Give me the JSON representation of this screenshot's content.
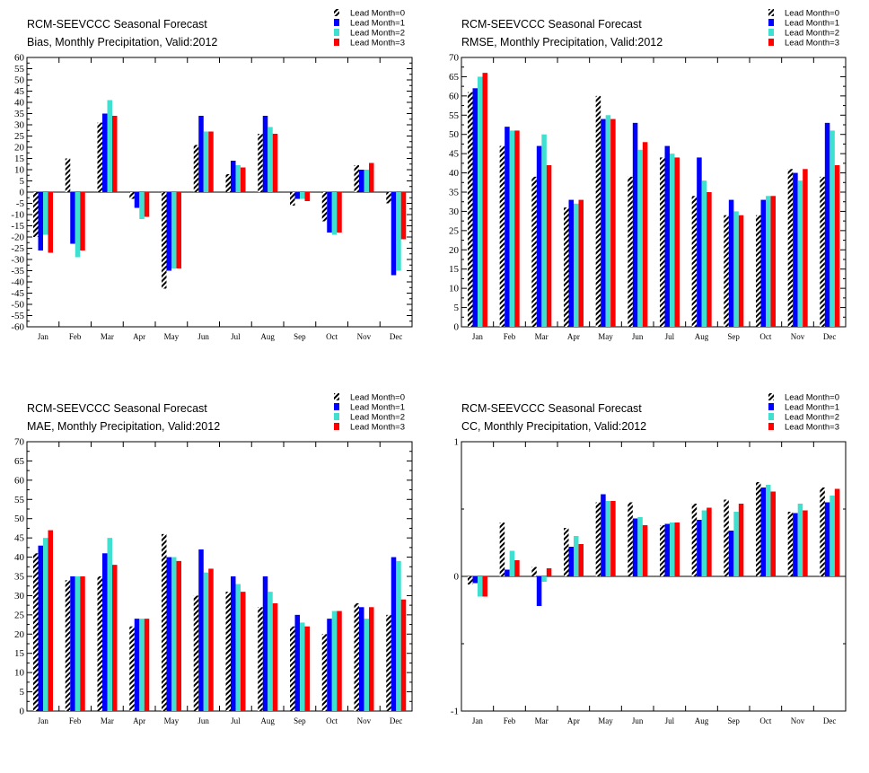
{
  "chart_data": [
    {
      "type": "bar",
      "title": "RCM-SEEVCCC Seasonal Forecast",
      "subtitle": "Bias, Monthly Precipitation, Valid:2012",
      "categories": [
        "Jan",
        "Feb",
        "Mar",
        "Apr",
        "May",
        "Jun",
        "Jul",
        "Aug",
        "Sep",
        "Oct",
        "Nov",
        "Dec"
      ],
      "ylim": [
        -60,
        60
      ],
      "yticks": [
        "60",
        "55",
        "50",
        "45",
        "40",
        "35",
        "30",
        "25",
        "20",
        "15",
        "10",
        "5",
        "0",
        "-5",
        "-10",
        "-15",
        "-20",
        "-25",
        "-30",
        "-35",
        "-40",
        "-45",
        "-50",
        "-55",
        "-60"
      ],
      "legend_position": "top-right",
      "series": [
        {
          "name": "Lead Month=0",
          "values": [
            -20,
            15,
            31,
            -3,
            -43,
            21,
            8,
            26,
            -6,
            -13,
            12,
            -5
          ]
        },
        {
          "name": "Lead Month=1",
          "values": [
            -26,
            -23,
            35,
            -7,
            -35,
            34,
            14,
            34,
            -3,
            -18,
            10,
            -37
          ]
        },
        {
          "name": "Lead Month=2",
          "values": [
            -19,
            -29,
            41,
            -12,
            -34,
            27,
            12,
            29,
            -3,
            -19,
            10,
            -35
          ]
        },
        {
          "name": "Lead Month=3",
          "values": [
            -27,
            -26,
            34,
            -11,
            -34,
            27,
            11,
            26,
            -4,
            -18,
            13,
            -21
          ]
        }
      ]
    },
    {
      "type": "bar",
      "title": "RCM-SEEVCCC Seasonal Forecast",
      "subtitle": "RMSE, Monthly Precipitation, Valid:2012",
      "categories": [
        "Jan",
        "Feb",
        "Mar",
        "Apr",
        "May",
        "Jun",
        "Jul",
        "Aug",
        "Sep",
        "Oct",
        "Nov",
        "Dec"
      ],
      "ylim": [
        0,
        70
      ],
      "yticks": [
        "70",
        "65",
        "60",
        "55",
        "50",
        "45",
        "40",
        "35",
        "30",
        "25",
        "20",
        "15",
        "10",
        "5",
        "0"
      ],
      "legend_position": "top-right",
      "series": [
        {
          "name": "Lead Month=0",
          "values": [
            61,
            47,
            39,
            31,
            60,
            39,
            44,
            34,
            29,
            29,
            41,
            39
          ]
        },
        {
          "name": "Lead Month=1",
          "values": [
            62,
            52,
            47,
            33,
            54,
            53,
            47,
            44,
            33,
            33,
            40,
            53
          ]
        },
        {
          "name": "Lead Month=2",
          "values": [
            65,
            51,
            50,
            32,
            55,
            46,
            45,
            38,
            30,
            34,
            38,
            51
          ]
        },
        {
          "name": "Lead Month=3",
          "values": [
            66,
            51,
            42,
            33,
            54,
            48,
            44,
            35,
            29,
            34,
            41,
            42
          ]
        }
      ]
    },
    {
      "type": "bar",
      "title": "RCM-SEEVCCC Seasonal Forecast",
      "subtitle": "MAE, Monthly Precipitation, Valid:2012",
      "categories": [
        "Jan",
        "Feb",
        "Mar",
        "Apr",
        "May",
        "Jun",
        "Jul",
        "Aug",
        "Sep",
        "Oct",
        "Nov",
        "Dec"
      ],
      "ylim": [
        0,
        70
      ],
      "yticks": [
        "70",
        "65",
        "60",
        "55",
        "50",
        "45",
        "40",
        "35",
        "30",
        "25",
        "20",
        "15",
        "10",
        "5",
        "0"
      ],
      "legend_position": "top-right",
      "series": [
        {
          "name": "Lead Month=0",
          "values": [
            41,
            34,
            35,
            22,
            46,
            30,
            31,
            27,
            22,
            20,
            28,
            25
          ]
        },
        {
          "name": "Lead Month=1",
          "values": [
            43,
            35,
            41,
            24,
            40,
            42,
            35,
            35,
            25,
            24,
            27,
            40
          ]
        },
        {
          "name": "Lead Month=2",
          "values": [
            45,
            35,
            45,
            24,
            40,
            36,
            33,
            31,
            23,
            26,
            24,
            39
          ]
        },
        {
          "name": "Lead Month=3",
          "values": [
            47,
            35,
            38,
            24,
            39,
            37,
            31,
            28,
            22,
            26,
            27,
            29
          ]
        }
      ]
    },
    {
      "type": "bar",
      "title": "RCM-SEEVCCC Seasonal Forecast",
      "subtitle": "CC, Monthly Precipitation, Valid:2012",
      "categories": [
        "Jan",
        "Feb",
        "Mar",
        "Apr",
        "May",
        "Jun",
        "Jul",
        "Aug",
        "Sep",
        "Oct",
        "Nov",
        "Dec"
      ],
      "ylim": [
        -1,
        1
      ],
      "yticks": [
        "1",
        "0",
        "-1"
      ],
      "legend_position": "top-right",
      "series": [
        {
          "name": "Lead Month=0",
          "values": [
            -0.06,
            0.4,
            0.07,
            0.36,
            0.55,
            0.55,
            0.38,
            0.54,
            0.57,
            0.7,
            0.48,
            0.66
          ]
        },
        {
          "name": "Lead Month=1",
          "values": [
            -0.05,
            0.05,
            -0.22,
            0.22,
            0.61,
            0.43,
            0.39,
            0.42,
            0.34,
            0.66,
            0.47,
            0.55
          ]
        },
        {
          "name": "Lead Month=2",
          "values": [
            -0.15,
            0.19,
            -0.04,
            0.3,
            0.56,
            0.44,
            0.4,
            0.49,
            0.48,
            0.68,
            0.54,
            0.6
          ]
        },
        {
          "name": "Lead Month=3",
          "values": [
            -0.15,
            0.12,
            0.06,
            0.24,
            0.56,
            0.38,
            0.4,
            0.51,
            0.54,
            0.63,
            0.49,
            0.65
          ]
        }
      ]
    }
  ],
  "colors": {
    "lead0_pattern": "#000000",
    "lead1": "#0000ff",
    "lead2": "#40e0d0",
    "lead3": "#ff0000",
    "axis": "#000000"
  }
}
